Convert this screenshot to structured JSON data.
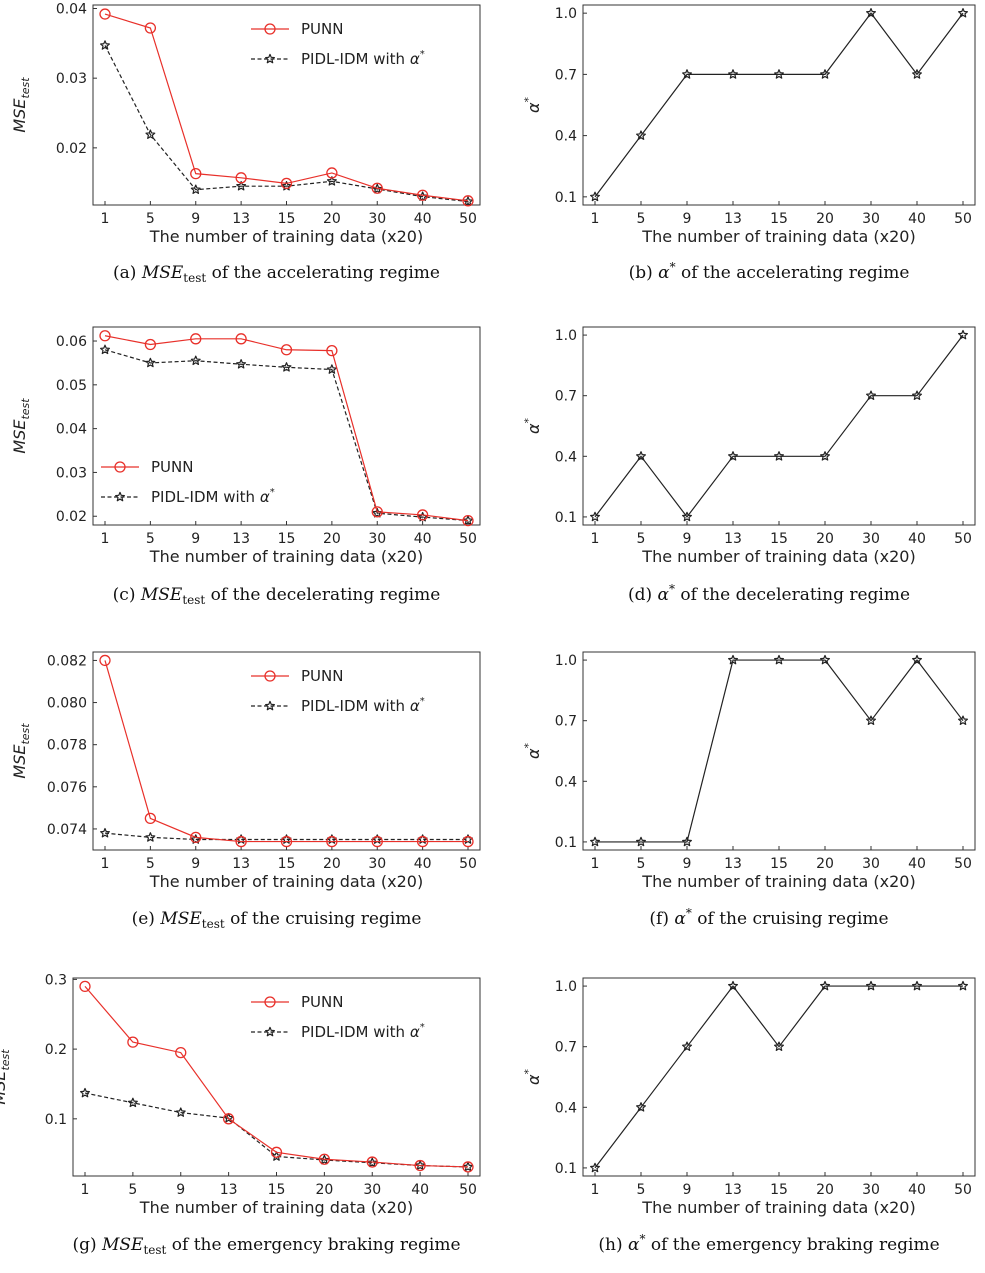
{
  "chart_data": [
    {
      "id": "a",
      "type": "line",
      "categories": [
        "1",
        "5",
        "9",
        "13",
        "15",
        "20",
        "30",
        "40",
        "50"
      ],
      "series": [
        {
          "name": "PUNN",
          "color": "#e8302a",
          "marker": "circle",
          "dash": false,
          "values": [
            0.0392,
            0.0372,
            0.0163,
            0.0157,
            0.0149,
            0.0164,
            0.0142,
            0.0132,
            0.0124
          ]
        },
        {
          "name": "PIDL-IDM with α*",
          "color": "#222222",
          "marker": "star",
          "dash": true,
          "values": [
            0.0347,
            0.0219,
            0.014,
            0.0145,
            0.0145,
            0.0152,
            0.0141,
            0.013,
            0.0123
          ]
        }
      ],
      "xlabel": "The number of training data (x20)",
      "ylabel": "MSE_test",
      "ylim": [
        0.0118,
        0.0405
      ],
      "yticks": [
        "0.02",
        "0.03",
        "0.04"
      ],
      "ytick_values": [
        0.02,
        0.03,
        0.04
      ],
      "legend": "top-right",
      "caption": "(a) MSE_test of the accelerating regime"
    },
    {
      "id": "b",
      "type": "line",
      "categories": [
        "1",
        "5",
        "9",
        "13",
        "15",
        "20",
        "30",
        "40",
        "50"
      ],
      "series": [
        {
          "name": "",
          "color": "#222222",
          "marker": "star",
          "dash": false,
          "values": [
            0.1,
            0.4,
            0.7,
            0.7,
            0.7,
            0.7,
            1.0,
            0.7,
            1.0
          ]
        }
      ],
      "xlabel": "The number of training data (x20)",
      "ylabel": "α*",
      "ylim": [
        0.06,
        1.04
      ],
      "yticks": [
        "0.1",
        "0.4",
        "0.7",
        "1.0"
      ],
      "ytick_values": [
        0.1,
        0.4,
        0.7,
        1.0
      ],
      "legend": "none",
      "caption": "(b) α* of the accelerating regime"
    },
    {
      "id": "c",
      "type": "line",
      "categories": [
        "1",
        "5",
        "9",
        "13",
        "15",
        "20",
        "30",
        "40",
        "50"
      ],
      "series": [
        {
          "name": "PUNN",
          "color": "#e8302a",
          "marker": "circle",
          "dash": false,
          "values": [
            0.0612,
            0.0592,
            0.0605,
            0.0605,
            0.058,
            0.0578,
            0.021,
            0.0203,
            0.019
          ]
        },
        {
          "name": "PIDL-IDM with α*",
          "color": "#222222",
          "marker": "star",
          "dash": true,
          "values": [
            0.058,
            0.055,
            0.0555,
            0.0547,
            0.054,
            0.0535,
            0.0207,
            0.0198,
            0.019
          ]
        }
      ],
      "xlabel": "The number of training data (x20)",
      "ylabel": "MSE_test",
      "ylim": [
        0.018,
        0.0632
      ],
      "yticks": [
        "0.02",
        "0.03",
        "0.04",
        "0.05",
        "0.06"
      ],
      "ytick_values": [
        0.02,
        0.03,
        0.04,
        0.05,
        0.06
      ],
      "legend": "lower-left",
      "caption": "(c) MSE_test of the decelerating regime"
    },
    {
      "id": "d",
      "type": "line",
      "categories": [
        "1",
        "5",
        "9",
        "13",
        "15",
        "20",
        "30",
        "40",
        "50"
      ],
      "series": [
        {
          "name": "",
          "color": "#222222",
          "marker": "star",
          "dash": false,
          "values": [
            0.1,
            0.4,
            0.1,
            0.4,
            0.4,
            0.4,
            0.7,
            0.7,
            1.0
          ]
        }
      ],
      "xlabel": "The number of training data (x20)",
      "ylabel": "α*",
      "ylim": [
        0.06,
        1.04
      ],
      "yticks": [
        "0.1",
        "0.4",
        "0.7",
        "1.0"
      ],
      "ytick_values": [
        0.1,
        0.4,
        0.7,
        1.0
      ],
      "legend": "none",
      "caption": "(d) α* of the decelerating regime"
    },
    {
      "id": "e",
      "type": "line",
      "categories": [
        "1",
        "5",
        "9",
        "13",
        "15",
        "20",
        "30",
        "40",
        "50"
      ],
      "series": [
        {
          "name": "PUNN",
          "color": "#e8302a",
          "marker": "circle",
          "dash": false,
          "values": [
            0.082,
            0.0745,
            0.0736,
            0.0734,
            0.0734,
            0.0734,
            0.0734,
            0.0734,
            0.0734
          ]
        },
        {
          "name": "PIDL-IDM with α*",
          "color": "#222222",
          "marker": "star",
          "dash": true,
          "values": [
            0.0738,
            0.0736,
            0.0735,
            0.0735,
            0.0735,
            0.0735,
            0.0735,
            0.0735,
            0.0735
          ]
        }
      ],
      "xlabel": "The number of training data (x20)",
      "ylabel": "MSE_test",
      "ylim": [
        0.073,
        0.0824
      ],
      "yticks": [
        "0.074",
        "0.076",
        "0.078",
        "0.080",
        "0.082"
      ],
      "ytick_values": [
        0.074,
        0.076,
        0.078,
        0.08,
        0.082
      ],
      "legend": "top-right",
      "caption": "(e) MSE_test of the cruising regime"
    },
    {
      "id": "f",
      "type": "line",
      "categories": [
        "1",
        "5",
        "9",
        "13",
        "15",
        "20",
        "30",
        "40",
        "50"
      ],
      "series": [
        {
          "name": "",
          "color": "#222222",
          "marker": "star",
          "dash": false,
          "values": [
            0.1,
            0.1,
            0.1,
            1.0,
            1.0,
            1.0,
            0.7,
            1.0,
            0.7
          ]
        }
      ],
      "xlabel": "The number of training data (x20)",
      "ylabel": "α*",
      "ylim": [
        0.06,
        1.04
      ],
      "yticks": [
        "0.1",
        "0.4",
        "0.7",
        "1.0"
      ],
      "ytick_values": [
        0.1,
        0.4,
        0.7,
        1.0
      ],
      "legend": "none",
      "caption": "(f) α* of the cruising regime"
    },
    {
      "id": "g",
      "type": "line",
      "categories": [
        "1",
        "5",
        "9",
        "13",
        "15",
        "20",
        "30",
        "40",
        "50"
      ],
      "series": [
        {
          "name": "PUNN",
          "color": "#e8302a",
          "marker": "circle",
          "dash": false,
          "values": [
            0.29,
            0.21,
            0.195,
            0.1,
            0.052,
            0.042,
            0.038,
            0.033,
            0.031
          ]
        },
        {
          "name": "PIDL-IDM with α*",
          "color": "#222222",
          "marker": "star",
          "dash": true,
          "values": [
            0.137,
            0.123,
            0.109,
            0.101,
            0.046,
            0.041,
            0.037,
            0.033,
            0.031
          ]
        }
      ],
      "xlabel": "The number of training data (x20)",
      "ylabel": "MSE_test",
      "ylim": [
        0.018,
        0.302
      ],
      "yticks": [
        "0.1",
        "0.2",
        "0.3"
      ],
      "ytick_values": [
        0.1,
        0.2,
        0.3
      ],
      "legend": "top-right",
      "caption": "(g) MSE_test of the emergency braking regime"
    },
    {
      "id": "h",
      "type": "line",
      "categories": [
        "1",
        "5",
        "9",
        "13",
        "15",
        "20",
        "30",
        "40",
        "50"
      ],
      "series": [
        {
          "name": "",
          "color": "#222222",
          "marker": "star",
          "dash": false,
          "values": [
            0.1,
            0.4,
            0.7,
            1.0,
            0.7,
            1.0,
            1.0,
            1.0,
            1.0
          ]
        }
      ],
      "xlabel": "The number of training data (x20)",
      "ylabel": "α*",
      "ylim": [
        0.06,
        1.04
      ],
      "yticks": [
        "0.1",
        "0.4",
        "0.7",
        "1.0"
      ],
      "ytick_values": [
        0.1,
        0.4,
        0.7,
        1.0
      ],
      "legend": "none",
      "caption": "(h) α* of the emergency braking regime"
    }
  ]
}
